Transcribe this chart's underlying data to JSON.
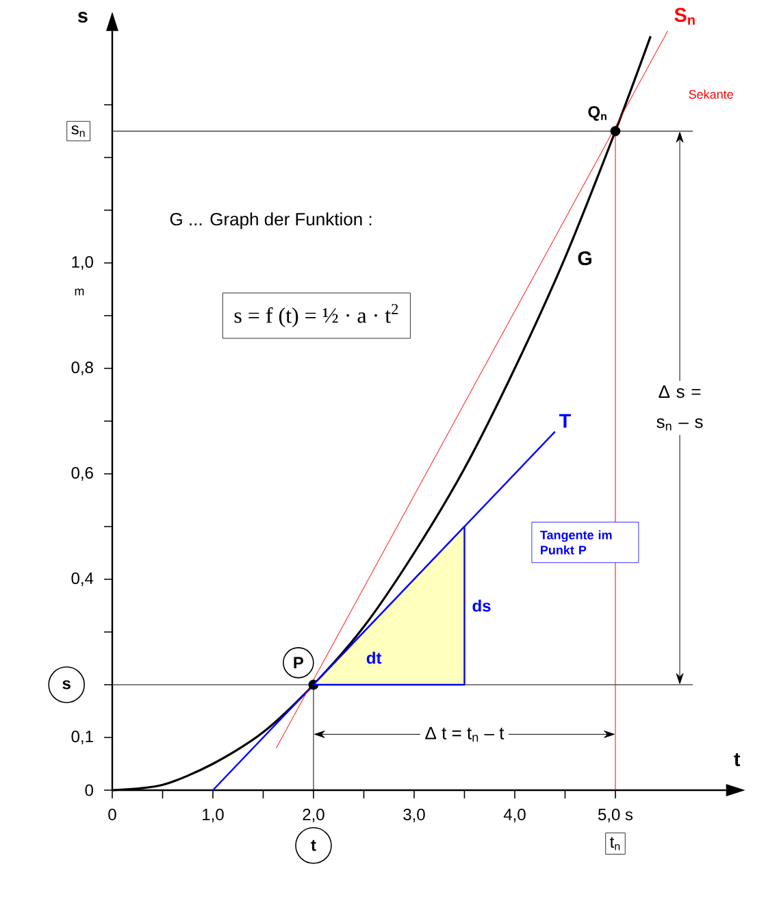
{
  "chart_data": {
    "type": "line",
    "xlabel": "t",
    "ylabel": "s",
    "xlim": [
      0,
      6.1
    ],
    "ylim": [
      0,
      1.44
    ],
    "xticks": [
      0,
      {
        "value": 0.5,
        "label": null
      },
      {
        "value": 1,
        "label": "1,0"
      },
      {
        "value": 1.5,
        "label": null
      },
      {
        "value": 2,
        "label": "2,0"
      },
      {
        "value": 2.5,
        "label": null
      },
      {
        "value": 3,
        "label": "3,0"
      },
      {
        "value": 3.5,
        "label": null
      },
      {
        "value": 4,
        "label": "4,0"
      },
      {
        "value": 4.5,
        "label": null
      },
      {
        "value": 5,
        "label": "5,0 s"
      }
    ],
    "yticks": [
      0,
      {
        "value": 0.1,
        "label": "0,1"
      },
      {
        "value": 0.2,
        "label": null
      },
      {
        "value": 0.3,
        "label": null
      },
      {
        "value": 0.4,
        "label": "0,4"
      },
      {
        "value": 0.5,
        "label": null
      },
      {
        "value": 0.6,
        "label": "0,6"
      },
      {
        "value": 0.7,
        "label": null
      },
      {
        "value": 0.8,
        "label": "0,8"
      },
      {
        "value": 0.9,
        "label": null
      },
      {
        "value": 1.0,
        "label": "1,0"
      },
      {
        "value": 1.1,
        "label": null
      },
      {
        "value": 1.2,
        "label": null
      },
      {
        "value": 1.3,
        "label": null
      }
    ],
    "series": [
      {
        "name": "G",
        "color": "#000000",
        "x": [
          0,
          0.5,
          1,
          1.5,
          2,
          2.5,
          3,
          3.5,
          4,
          4.5,
          5,
          5.35
        ],
        "values": [
          0,
          0.01,
          0.05,
          0.11,
          0.2,
          0.31,
          0.45,
          0.61,
          0.8,
          1.01,
          1.25,
          1.43
        ]
      },
      {
        "name": "T",
        "type": "line",
        "color": "#0000ff",
        "x": [
          1,
          4.4
        ],
        "values": [
          0,
          0.68
        ]
      },
      {
        "name": "S$_{n}$",
        "type": "line",
        "color": "#ff0000",
        "x": [
          1.63,
          5.52
        ],
        "values": [
          0.08,
          1.44
        ]
      },
      {
        "type": "scatter",
        "color": "#000000",
        "marker": "circle",
        "x": [
          2,
          5
        ],
        "values": [
          0.2,
          1.25
        ]
      }
    ],
    "ref_lines": [
      {
        "axis": "y",
        "value": 0.2,
        "color": "#000000"
      },
      {
        "axis": "y",
        "value": 1.25,
        "color": "#000000"
      },
      {
        "axis": "x",
        "value": 2,
        "color": "#000000"
      },
      {
        "axis": "x",
        "value": 5,
        "color": "#ff0000"
      }
    ],
    "annotations": [
      "G ... Graph der Funktion :",
      "s = f (t) = ½ · a · t$^{2}$",
      "Tangente im Punkt P",
      "m",
      "Sekante",
      {
        "text": "P",
        "x": 2,
        "y": 0.2
      },
      {
        "text": "Q$_{n}$",
        "x": 5,
        "y": 1.25
      },
      "dt",
      "ds",
      {
        "text": "Δ s = s$_{n}$ – s",
        "x": 5.64,
        "y": 1.25
      },
      {
        "text": "Δ t  = t$_{n}$ – t",
        "x": 5,
        "y": 0.106
      },
      {
        "text": "s",
        "x": 0,
        "y": 0.2
      },
      {
        "text": "s$_{n}$",
        "x": 0,
        "y": 1.25
      },
      "t",
      "t$_{n}$"
    ]
  }
}
